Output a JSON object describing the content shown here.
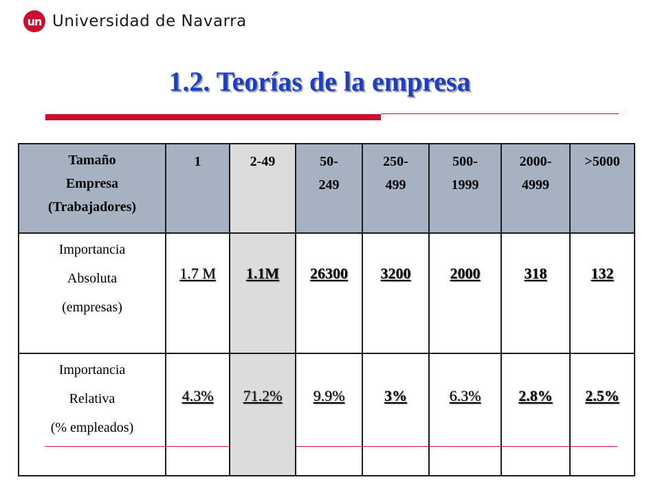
{
  "header": {
    "logo_mark": "un",
    "logo_text": "Universidad de Navarra"
  },
  "title": "1.2. Teorías de la empresa",
  "table": {
    "header": {
      "label_lines": [
        "Tamaño",
        "Empresa",
        "(Trabajadores)"
      ],
      "columns": [
        [
          "1"
        ],
        [
          "2-49"
        ],
        [
          "50-",
          "249"
        ],
        [
          "250-",
          "499"
        ],
        [
          "500-",
          "1999"
        ],
        [
          "2000-",
          "4999"
        ],
        [
          ">5000"
        ]
      ]
    },
    "rows": [
      {
        "label_lines": [
          "Importancia",
          "Absoluta",
          "(empresas)"
        ],
        "values": [
          "1.7 M",
          "1.1M",
          "26300",
          "3200",
          "2000",
          "318",
          "132"
        ]
      },
      {
        "label_lines": [
          "Importancia",
          "Relativa",
          "(% empleados)"
        ],
        "values": [
          "4.3%",
          "71.2%",
          "9.9%",
          "3%",
          "6.3%",
          "2.8%",
          "2.5%"
        ]
      }
    ],
    "colors": {
      "header_bg": "#a6b2c2",
      "highlight_bg": "#dcdcdc"
    }
  },
  "colors": {
    "accent_red": "#c8102e",
    "title_blue": "#1f3fbf"
  }
}
